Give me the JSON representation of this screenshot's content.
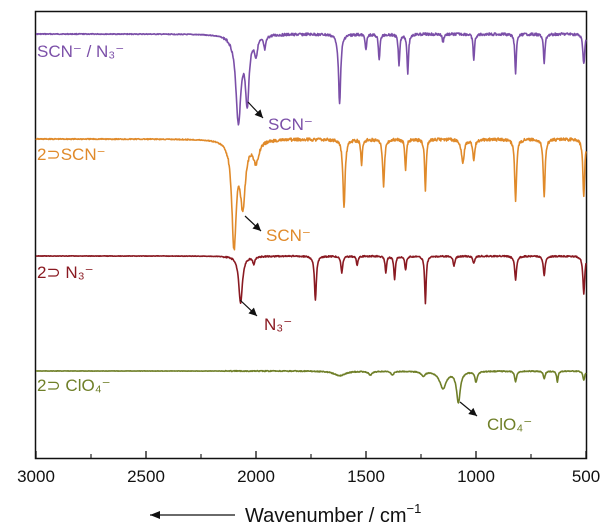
{
  "chart_data": {
    "type": "line",
    "title": "",
    "xlabel": "Wavenumber / cm",
    "xlabel_sup": "−1",
    "x_direction_arrow": "left",
    "xlim": [
      3000,
      500
    ],
    "x_ticks": [
      3000,
      2500,
      2000,
      1500,
      1000,
      500
    ],
    "grid": false,
    "colors": {
      "purple": "#7b4fa8",
      "orange": "#e08a2a",
      "darkred": "#8a1a22",
      "olive": "#6f7f28"
    },
    "series": [
      {
        "name": "SCN⁻ / N₃⁻",
        "color": "#7b4fa8",
        "band_label": "SCN⁻",
        "baseline": 0.0,
        "peaks": [
          [
            2080,
            1.0,
            14
          ],
          [
            2040,
            0.75,
            10
          ],
          [
            2000,
            0.2,
            8
          ],
          [
            1960,
            0.15,
            6
          ],
          [
            1620,
            0.8,
            6
          ],
          [
            1500,
            0.18,
            4
          ],
          [
            1440,
            0.3,
            4
          ],
          [
            1350,
            0.35,
            4
          ],
          [
            1310,
            0.45,
            4
          ],
          [
            1150,
            0.1,
            4
          ],
          [
            1010,
            0.3,
            4
          ],
          [
            820,
            0.45,
            4
          ],
          [
            690,
            0.35,
            4
          ],
          [
            510,
            0.35,
            5
          ]
        ]
      },
      {
        "name": "2⊃SCN⁻",
        "color": "#e08a2a",
        "band_label": "SCN⁻",
        "baseline": 0.0,
        "peaks": [
          [
            2100,
            1.0,
            12
          ],
          [
            2060,
            0.6,
            14
          ],
          [
            2000,
            0.2,
            15
          ],
          [
            1600,
            0.65,
            6
          ],
          [
            1520,
            0.25,
            4
          ],
          [
            1420,
            0.45,
            5
          ],
          [
            1320,
            0.3,
            4
          ],
          [
            1230,
            0.5,
            4
          ],
          [
            1060,
            0.22,
            8
          ],
          [
            1010,
            0.2,
            5
          ],
          [
            820,
            0.6,
            5
          ],
          [
            690,
            0.55,
            5
          ],
          [
            510,
            0.55,
            5
          ]
        ]
      },
      {
        "name": "2⊃ N₃⁻",
        "color": "#8a1a22",
        "band_label": "N₃⁻",
        "baseline": 0.0,
        "peaks": [
          [
            2070,
            1.0,
            10
          ],
          [
            2010,
            0.15,
            6
          ],
          [
            1730,
            0.95,
            5
          ],
          [
            1610,
            0.35,
            5
          ],
          [
            1540,
            0.2,
            4
          ],
          [
            1410,
            0.35,
            4
          ],
          [
            1370,
            0.5,
            4
          ],
          [
            1320,
            0.3,
            4
          ],
          [
            1230,
            1.0,
            4
          ],
          [
            1100,
            0.2,
            5
          ],
          [
            1010,
            0.15,
            5
          ],
          [
            820,
            0.5,
            5
          ],
          [
            690,
            0.4,
            5
          ],
          [
            510,
            0.8,
            5
          ]
        ]
      },
      {
        "name": "2⊃ ClO₄⁻",
        "color": "#6f7f28",
        "band_label": "ClO₄⁻",
        "baseline": 0.0,
        "peaks": [
          [
            1620,
            0.15,
            30
          ],
          [
            1480,
            0.12,
            10
          ],
          [
            1380,
            0.12,
            8
          ],
          [
            1240,
            0.15,
            10
          ],
          [
            1150,
            0.55,
            18
          ],
          [
            1080,
            1.0,
            10
          ],
          [
            1000,
            0.35,
            6
          ],
          [
            820,
            0.35,
            5
          ],
          [
            690,
            0.25,
            5
          ],
          [
            630,
            0.35,
            4
          ],
          [
            510,
            0.3,
            5
          ]
        ]
      }
    ]
  }
}
